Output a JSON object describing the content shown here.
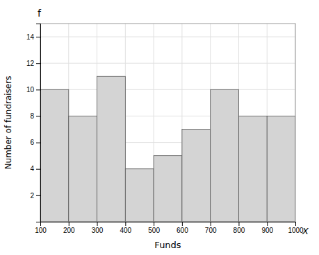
{
  "chart_data": {
    "type": "histogram",
    "bins": [
      100,
      200,
      300,
      400,
      500,
      600,
      700,
      800,
      900,
      1000
    ],
    "values": [
      10,
      8,
      11,
      4,
      5,
      7,
      10,
      8,
      8
    ],
    "color": "#d4d4d4",
    "x_label": "Funds",
    "y_label": "Number of fundraisers",
    "annotations": [
      "f",
      "X"
    ],
    "xlim": [
      100,
      1000
    ],
    "xticks": [
      100,
      200,
      300,
      400,
      500,
      600,
      700,
      800,
      900,
      1000
    ],
    "ylim": [
      0,
      15
    ],
    "yticks": [
      2,
      4,
      6,
      8,
      10,
      12,
      14
    ],
    "grid": true
  }
}
